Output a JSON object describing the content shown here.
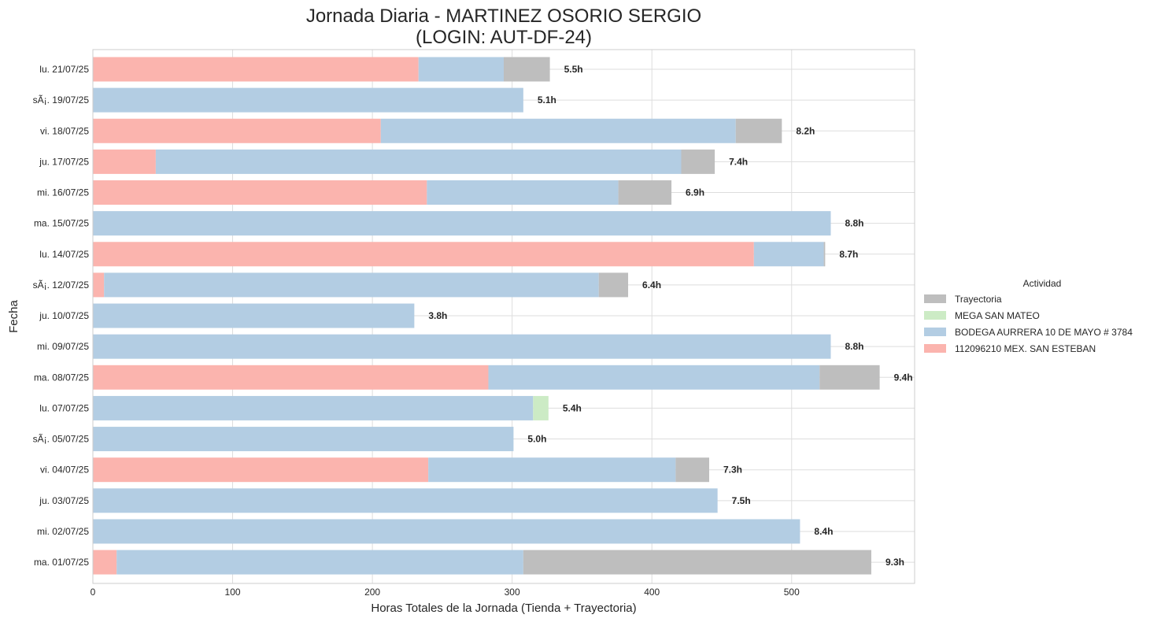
{
  "chart_data": {
    "type": "bar",
    "orientation": "horizontal",
    "stacked": true,
    "title_line1": "Jornada Diaria - MARTINEZ OSORIO SERGIO",
    "title_line2": "(LOGIN: AUT-DF-24)",
    "xlabel": "Horas Totales de la Jornada (Tienda + Trayectoria)",
    "ylabel": "Fecha",
    "xlim": [
      0,
      588
    ],
    "xticks": [
      0,
      100,
      200,
      300,
      400,
      500
    ],
    "grid": true,
    "legend_position": "right",
    "legend_title": "Actividad",
    "categories": [
      "lu. 21/07/25",
      "sÃ¡. 19/07/25",
      "vi. 18/07/25",
      "ju. 17/07/25",
      "mi. 16/07/25",
      "ma. 15/07/25",
      "lu. 14/07/25",
      "sÃ¡. 12/07/25",
      "ju. 10/07/25",
      "mi. 09/07/25",
      "ma. 08/07/25",
      "lu. 07/07/25",
      "sÃ¡. 05/07/25",
      "vi. 04/07/25",
      "ju. 03/07/25",
      "mi. 02/07/25",
      "ma. 01/07/25"
    ],
    "series": [
      {
        "name": "112096210 MEX. SAN ESTEBAN",
        "color": "#fbb4ae",
        "values": [
          233,
          0,
          206,
          45,
          239,
          0,
          473,
          8,
          0,
          0,
          283,
          0,
          0,
          240,
          0,
          0,
          17
        ]
      },
      {
        "name": "BODEGA AURRERA 10 DE MAYO # 3784",
        "color": "#b3cde3",
        "values": [
          61,
          308,
          254,
          376,
          137,
          528,
          50,
          354,
          230,
          528,
          237,
          315,
          301,
          177,
          447,
          506,
          291
        ]
      },
      {
        "name": "MEGA SAN MATEO",
        "color": "#ccebc5",
        "values": [
          0,
          0,
          0,
          0,
          0,
          0,
          0,
          0,
          0,
          0,
          0,
          11,
          0,
          0,
          0,
          0,
          0
        ]
      },
      {
        "name": "Trayectoria",
        "color": "#bebebe",
        "values": [
          33,
          0,
          33,
          24,
          38,
          0,
          1,
          21,
          0,
          0,
          43,
          0,
          0,
          24,
          0,
          0,
          249
        ]
      }
    ],
    "legend_order": [
      "Trayectoria",
      "MEGA SAN MATEO",
      "BODEGA AURRERA 10 DE MAYO # 3784",
      "112096210 MEX. SAN ESTEBAN"
    ],
    "data_labels": [
      "5.5h",
      "5.1h",
      "8.2h",
      "7.4h",
      "6.9h",
      "8.8h",
      "8.7h",
      "6.4h",
      "3.8h",
      "8.8h",
      "9.4h",
      "5.4h",
      "5.0h",
      "7.3h",
      "7.5h",
      "8.4h",
      "9.3h"
    ]
  }
}
